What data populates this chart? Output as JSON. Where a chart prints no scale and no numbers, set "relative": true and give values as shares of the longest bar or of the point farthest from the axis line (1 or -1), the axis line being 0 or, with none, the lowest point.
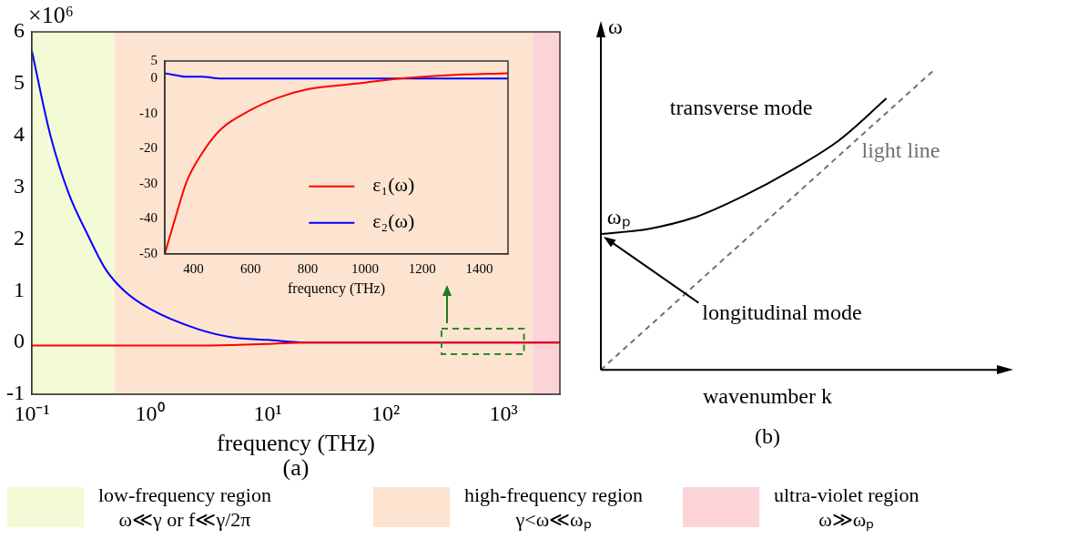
{
  "chart_data": [
    {
      "type": "line",
      "xlabel": "frequency (THz)",
      "log": "x",
      "xlim": [
        0.1,
        3000
      ],
      "ylim": [
        -1,
        6
      ],
      "xticks": [
        {
          "value": 0.1,
          "label": "10⁻¹"
        },
        {
          "value": 1,
          "label": "10⁰"
        },
        {
          "value": 10,
          "label": "10¹"
        },
        {
          "value": 100,
          "label": "10²"
        },
        {
          "value": 1000,
          "label": "10³"
        }
      ],
      "yticks": [
        -1,
        0,
        1,
        2,
        3,
        4,
        5,
        6
      ],
      "x": [
        0.1,
        0.144,
        0.206,
        0.296,
        0.42,
        0.605,
        1,
        2.54,
        5,
        10,
        22,
        100,
        3000
      ],
      "series": [
        {
          "color": "#ff0000",
          "values": [
            -0.06,
            -0.06,
            -0.06,
            -0.06,
            -0.06,
            -0.06,
            -0.06,
            -0.06,
            -0.05,
            -0.03,
            0,
            0,
            0
          ]
        },
        {
          "color": "#0000ff",
          "values": [
            5.63,
            3.99,
            2.87,
            2.09,
            1.42,
            1.0,
            0.65,
            0.26,
            0.1,
            0.05,
            0,
            0,
            0
          ]
        }
      ],
      "bands": [
        {
          "axis": "x",
          "from": 0.1,
          "to": 0.5,
          "label": "low-frequency region\nω≪γ or f≪γ/2π",
          "color": "#f3fbd6"
        },
        {
          "axis": "x",
          "from": 0.5,
          "to": 1750,
          "label": "high-frequency region\nγ<ω≪ωₚ",
          "color": "#fde4d0"
        },
        {
          "axis": "x",
          "from": 1750,
          "to": 3000,
          "label": "ultra-violet region\nω≫ωₚ",
          "color": "#fcd4d8"
        }
      ],
      "legend": "bottom",
      "annotations": [
        "×10⁶",
        "(a)"
      ],
      "grid": false,
      "marker": "none",
      "line_style": "solid"
    },
    {
      "type": "line",
      "xlabel": "frequency (THz)",
      "xlim": [
        300,
        1500
      ],
      "ylim": [
        -50,
        5
      ],
      "xticks": [
        400,
        600,
        800,
        1000,
        1200,
        1400
      ],
      "yticks": [
        5,
        0,
        -10,
        -20,
        -30,
        -40,
        -50
      ],
      "x": [
        300,
        336,
        376,
        429,
        496,
        600,
        696,
        803,
        963,
        1123,
        1300,
        1500
      ],
      "series": [
        {
          "name": "ε₁(ω)",
          "color": "#ff0000",
          "values": [
            -50,
            -40,
            -29.5,
            -21.5,
            -14.5,
            -9,
            -5.5,
            -3,
            -1.5,
            0,
            1,
            1.5
          ]
        },
        {
          "name": "ε₂(ω)",
          "color": "#0000ff",
          "values": [
            1.5,
            1,
            0.5,
            0.5,
            0,
            0,
            0,
            0,
            0,
            0,
            0,
            0
          ]
        }
      ],
      "legend": "right",
      "grid": false,
      "marker": "none"
    },
    {
      "type": "line",
      "relative": true,
      "xlabel": "wavenumber k",
      "ylabel": "ω",
      "categories": [
        null,
        null,
        null,
        null,
        null,
        null,
        null,
        null
      ],
      "series": [
        {
          "color": "#000000",
          "values": [
            0.453,
            0.47,
            0.51,
            0.58,
            0.665,
            0.765,
            0.905,
            null
          ]
        },
        {
          "color": "#707070",
          "values": [
            0,
            0.143,
            0.286,
            0.429,
            0.571,
            0.714,
            0.857,
            1
          ],
          "line_style": "dashed"
        }
      ],
      "annotations": [
        "transverse mode",
        "light line",
        "ωₚ",
        "longitudinal mode",
        "(b)"
      ],
      "grid": false,
      "marker": "none"
    }
  ]
}
